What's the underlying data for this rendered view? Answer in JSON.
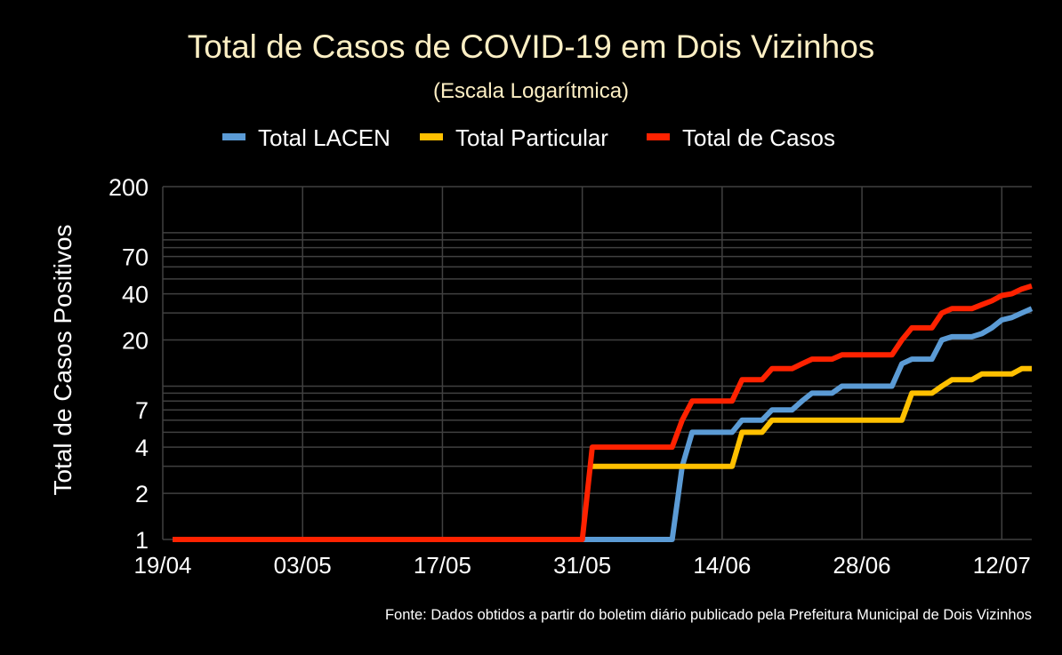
{
  "chart_data": {
    "type": "line",
    "title": "Total de Casos de COVID-19 em Dois Vizinhos",
    "subtitle": "(Escala Logarítmica)",
    "ylabel": "Total de Casos Positivos",
    "xlabel": "",
    "yscale": "log",
    "ylim": [
      1,
      200
    ],
    "ytick_labels": [
      "1",
      "2",
      "4",
      "7",
      "20",
      "40",
      "70",
      "200"
    ],
    "ytick_values": [
      1,
      2,
      4,
      7,
      20,
      40,
      70,
      200
    ],
    "ygrid_values": [
      1,
      2,
      3,
      4,
      5,
      6,
      7,
      8,
      9,
      10,
      20,
      30,
      40,
      50,
      60,
      70,
      80,
      90,
      100,
      200
    ],
    "x_axis_origin": "19/04",
    "x_range_days": [
      0,
      87
    ],
    "x_start_day": 1,
    "x_step_days": 1,
    "xtick_labels": [
      "19/04",
      "03/05",
      "17/05",
      "31/05",
      "14/06",
      "28/06",
      "12/07"
    ],
    "xtick_days": [
      0,
      14,
      28,
      42,
      56,
      70,
      84
    ],
    "grid": true,
    "legend_position": "top-center",
    "series": [
      {
        "name": "Total LACEN",
        "color": "#5b9bd5",
        "values": [
          1,
          1,
          1,
          1,
          1,
          1,
          1,
          1,
          1,
          1,
          1,
          1,
          1,
          1,
          1,
          1,
          1,
          1,
          1,
          1,
          1,
          1,
          1,
          1,
          1,
          1,
          1,
          1,
          1,
          1,
          1,
          1,
          1,
          1,
          1,
          1,
          1,
          1,
          1,
          1,
          1,
          1,
          1,
          1,
          1,
          1,
          1,
          1,
          1,
          1,
          1,
          3,
          5,
          5,
          5,
          5,
          5,
          6,
          6,
          6,
          7,
          7,
          7,
          8,
          9,
          9,
          9,
          10,
          10,
          10,
          10,
          10,
          10,
          14,
          15,
          15,
          15,
          20,
          21,
          21,
          21,
          22,
          24,
          27,
          28,
          30,
          32
        ]
      },
      {
        "name": "Total Particular",
        "color": "#ffc000",
        "values": [
          null,
          null,
          null,
          null,
          null,
          null,
          null,
          null,
          null,
          null,
          null,
          null,
          null,
          null,
          null,
          null,
          null,
          null,
          null,
          null,
          null,
          null,
          null,
          null,
          null,
          null,
          null,
          null,
          null,
          null,
          null,
          null,
          null,
          null,
          null,
          null,
          null,
          null,
          null,
          null,
          null,
          null,
          3,
          3,
          3,
          3,
          3,
          3,
          3,
          3,
          3,
          3,
          3,
          3,
          3,
          3,
          3,
          5,
          5,
          5,
          6,
          6,
          6,
          6,
          6,
          6,
          6,
          6,
          6,
          6,
          6,
          6,
          6,
          6,
          9,
          9,
          9,
          10,
          11,
          11,
          11,
          12,
          12,
          12,
          12,
          13,
          13
        ]
      },
      {
        "name": "Total de Casos",
        "color": "#ff2200",
        "values": [
          1,
          1,
          1,
          1,
          1,
          1,
          1,
          1,
          1,
          1,
          1,
          1,
          1,
          1,
          1,
          1,
          1,
          1,
          1,
          1,
          1,
          1,
          1,
          1,
          1,
          1,
          1,
          1,
          1,
          1,
          1,
          1,
          1,
          1,
          1,
          1,
          1,
          1,
          1,
          1,
          1,
          1,
          4,
          4,
          4,
          4,
          4,
          4,
          4,
          4,
          4,
          6,
          8,
          8,
          8,
          8,
          8,
          11,
          11,
          11,
          13,
          13,
          13,
          14,
          15,
          15,
          15,
          16,
          16,
          16,
          16,
          16,
          16,
          20,
          24,
          24,
          24,
          30,
          32,
          32,
          32,
          34,
          36,
          39,
          40,
          43,
          45
        ]
      }
    ],
    "source": "Fonte: Dados obtidos a partir do boletim diário publicado pela Prefeitura Municipal de Dois Vizinhos"
  },
  "colors": {
    "title": "#fdefc4",
    "text": "#ffffff",
    "grid": "#404040",
    "background": "#000000"
  }
}
